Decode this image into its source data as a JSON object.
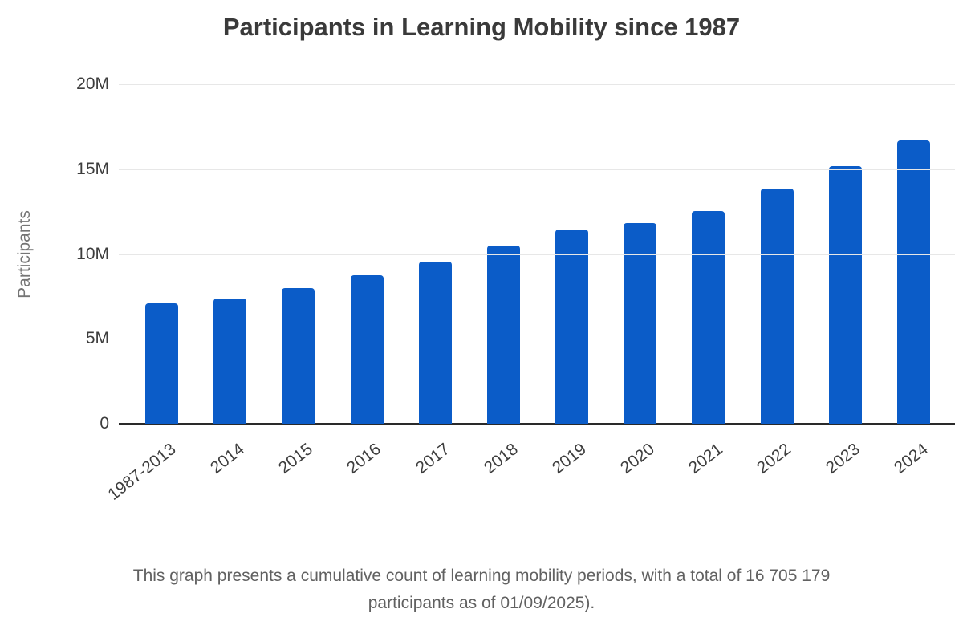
{
  "title": "Participants in Learning Mobility since 1987",
  "chart_data": {
    "type": "bar",
    "title": "Participants in Learning Mobility since 1987",
    "xlabel": "",
    "ylabel": "Participants",
    "ylim": [
      0,
      20000000
    ],
    "grid": true,
    "legend": "none",
    "yticks": [
      {
        "value": 0,
        "label": "0"
      },
      {
        "value": 5000000,
        "label": "5M"
      },
      {
        "value": 10000000,
        "label": "10M"
      },
      {
        "value": 15000000,
        "label": "15M"
      },
      {
        "value": 20000000,
        "label": "20M"
      }
    ],
    "categories": [
      "1987-2013",
      "2014",
      "2015",
      "2016",
      "2017",
      "2018",
      "2019",
      "2020",
      "2021",
      "2022",
      "2023",
      "2024"
    ],
    "values": [
      7100000,
      7400000,
      8000000,
      8750000,
      9550000,
      10500000,
      11450000,
      11800000,
      12550000,
      13850000,
      15200000,
      16705179
    ],
    "colors": {
      "bar": "#0b5cc8",
      "gridline": "#e7e7e7",
      "axis_line": "#2a2a2a",
      "tick_text": "#3d3d3d",
      "y_title_text": "#757575",
      "title_text": "#3a3a3a",
      "caption_text": "#616161"
    }
  },
  "caption": {
    "line1": "This graph presents a cumulative count of learning mobility periods, with a total of 16 705 179",
    "line2": "participants as of 01/09/2025)."
  }
}
